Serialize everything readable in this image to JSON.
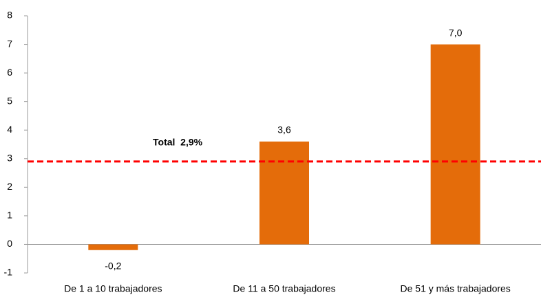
{
  "chart_data": {
    "type": "bar",
    "categories": [
      "De 1 a 10 trabajadores",
      "De 11 a 50 trabajadores",
      "De 51 y más trabajadores"
    ],
    "values": [
      -0.2,
      3.6,
      7.0
    ],
    "value_labels": [
      "-0,2",
      "3,6",
      "7,0"
    ],
    "color": "#e46c0a",
    "ylim": [
      -1,
      8
    ],
    "yticks": [
      -1,
      0,
      1,
      2,
      3,
      4,
      5,
      6,
      7,
      8
    ],
    "grid": false,
    "reference_line": {
      "value": 2.9,
      "label": "Total  2,9%",
      "color": "#ff0000"
    }
  }
}
